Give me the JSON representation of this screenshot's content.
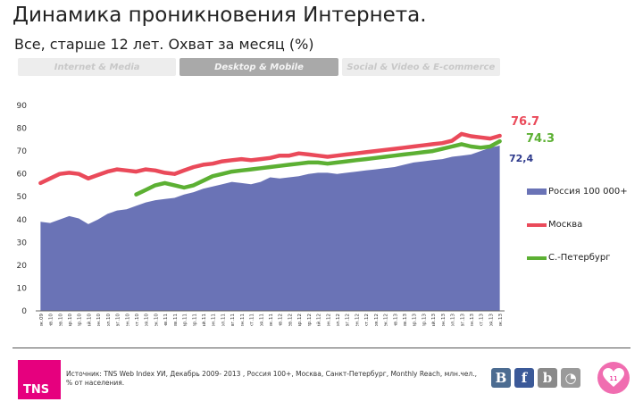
{
  "slide": {
    "title": "Динамика проникновения Интернета.",
    "subtitle": "Все, старше 12 лет. Охват за месяц (%)",
    "tabs": [
      "Internet & Media",
      "Desktop & Mobile",
      "Social & Video & E-commerce"
    ],
    "active_tab": 1,
    "source": "Источник: TNS Web Index УИ, Декабрь 2009- 2013 , Россия 100+, Москва, Санкт-Петербург, Monthly Reach, млн.чел., % от населения.",
    "logo_text": "TNS",
    "social_icons": [
      {
        "icon": "vk-icon",
        "glyph": "В",
        "color": "#4c6c91"
      },
      {
        "icon": "facebook-icon",
        "glyph": "f",
        "color": "#3b5998"
      },
      {
        "icon": "blog-icon",
        "glyph": "b",
        "color": "#8a8a8a"
      },
      {
        "icon": "rss-icon",
        "glyph": "◔",
        "color": "#9a9a9a"
      }
    ],
    "page_number": "11"
  },
  "chart_data": {
    "type": "area",
    "ylim": [
      0,
      90
    ],
    "yticks": [
      0,
      10,
      20,
      30,
      40,
      50,
      60,
      70,
      80,
      90
    ],
    "grid": false,
    "legend_position": "right",
    "x": [
      "Дек.09",
      "Янв.10",
      "Фев.10",
      "Мар.10",
      "Апр.10",
      "Май.10",
      "Июн.10",
      "Июл.10",
      "Авг.10",
      "Сен.10",
      "Окт.10",
      "Ноя.10",
      "Дек.10",
      "Янв.11",
      "Фев.11",
      "Мар.11",
      "Апр.11",
      "Май.11",
      "Июн.11",
      "Июл.11",
      "Авг.11",
      "Сен.11",
      "Окт.11",
      "Ноя.11",
      "Дек.11",
      "Янв.12",
      "Фев.12",
      "Мар.12",
      "Апр.12",
      "Май.12",
      "Июн.12",
      "Июл.12",
      "Авг.12",
      "Сен.12",
      "Окт.12",
      "Ноя.12",
      "Дек.12",
      "Янв.13",
      "Фев.13",
      "Мар.13",
      "Апр.13",
      "Май.13",
      "Июн.13",
      "Июл.13",
      "Авг.13",
      "Сен.13",
      "Окт.13",
      "Ноя.13",
      "Дек.13"
    ],
    "series": [
      {
        "name": "Россия 100 000+",
        "kind": "area",
        "color": "#6a73b6",
        "end_label": "72,4",
        "values": [
          39,
          38.5,
          40,
          41.5,
          40.5,
          38,
          40,
          42.5,
          44,
          44.5,
          46,
          47.5,
          48.5,
          49,
          49.5,
          51,
          52,
          53.5,
          54.5,
          55.5,
          56.5,
          56,
          55.5,
          56.5,
          58.5,
          58,
          58.5,
          59,
          60,
          60.5,
          60.5,
          60,
          60.5,
          61,
          61.5,
          62,
          62.5,
          63,
          64,
          65,
          65.5,
          66,
          66.5,
          67.5,
          68,
          68.5,
          70,
          71.5,
          72.4
        ]
      },
      {
        "name": "Москва",
        "kind": "line",
        "color": "#ea4a5a",
        "end_label": "76.7",
        "values": [
          56,
          58,
          60,
          60.5,
          60,
          58,
          59.5,
          61,
          62,
          61.5,
          61,
          62,
          61.5,
          60.5,
          60,
          61.5,
          63,
          64,
          64.5,
          65.5,
          66,
          66.5,
          66,
          66.5,
          67,
          68,
          68,
          69,
          68.5,
          68,
          67.5,
          68,
          68.5,
          69,
          69.5,
          70,
          70.5,
          71,
          71.5,
          72,
          72.5,
          73,
          73.5,
          74.5,
          77.5,
          76.5,
          76,
          75.5,
          76.7
        ]
      },
      {
        "name": "С.-Петербург",
        "kind": "line",
        "color": "#5cb033",
        "end_label": "74.3",
        "values": [
          null,
          null,
          null,
          null,
          null,
          null,
          null,
          null,
          null,
          null,
          51,
          53,
          55,
          56,
          55,
          54,
          55,
          57,
          59,
          60,
          61,
          61.5,
          62,
          62.5,
          63,
          63.5,
          64,
          64.5,
          65,
          65,
          64.5,
          65,
          65.5,
          66,
          66.5,
          67,
          67.5,
          68,
          68.5,
          69,
          69.5,
          70,
          71,
          72,
          73,
          72,
          71.5,
          72,
          74.3
        ]
      }
    ]
  }
}
